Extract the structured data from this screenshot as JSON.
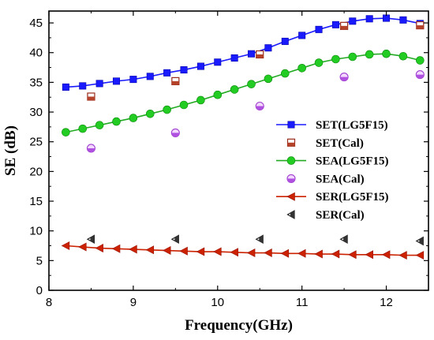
{
  "chart_data": {
    "type": "line",
    "xlabel": "Frequency(GHz)",
    "ylabel": "SE (dB)",
    "xlim": [
      8,
      12.5
    ],
    "ylim": [
      0,
      47
    ],
    "xticks": [
      8,
      9,
      10,
      11,
      12
    ],
    "yticks": [
      0,
      5,
      10,
      15,
      20,
      25,
      30,
      35,
      40,
      45
    ],
    "legend_position": "right",
    "series": [
      {
        "name": "SET(LG5F15)",
        "color": "#1a1aff",
        "marker": "square",
        "x": [
          8.2,
          8.4,
          8.6,
          8.8,
          9.0,
          9.2,
          9.4,
          9.6,
          9.8,
          10.0,
          10.2,
          10.4,
          10.6,
          10.8,
          11.0,
          11.2,
          11.4,
          11.6,
          11.8,
          12.0,
          12.2,
          12.4
        ],
        "y": [
          34.2,
          34.4,
          34.8,
          35.2,
          35.5,
          36.0,
          36.6,
          37.1,
          37.7,
          38.4,
          39.1,
          39.8,
          40.8,
          41.9,
          42.9,
          43.9,
          44.7,
          45.3,
          45.7,
          45.8,
          45.5,
          44.9
        ]
      },
      {
        "name": "SET(Cal)",
        "color": "#c0504d",
        "marker": "half-square",
        "x": [
          8.5,
          9.5,
          10.5,
          11.5,
          12.4
        ],
        "y": [
          32.6,
          35.2,
          39.7,
          44.5,
          44.6
        ]
      },
      {
        "name": "SEA(LG5F15)",
        "color": "#22cc22",
        "marker": "circle",
        "x": [
          8.2,
          8.4,
          8.6,
          8.8,
          9.0,
          9.2,
          9.4,
          9.6,
          9.8,
          10.0,
          10.2,
          10.4,
          10.6,
          10.8,
          11.0,
          11.2,
          11.4,
          11.6,
          11.8,
          12.0,
          12.2,
          12.4
        ],
        "y": [
          26.6,
          27.2,
          27.8,
          28.4,
          29.0,
          29.7,
          30.4,
          31.2,
          32.0,
          32.9,
          33.8,
          34.7,
          35.6,
          36.5,
          37.4,
          38.3,
          38.9,
          39.3,
          39.7,
          39.8,
          39.4,
          38.7
        ]
      },
      {
        "name": "SEA(Cal)",
        "color": "#b050d8",
        "marker": "half-circle",
        "x": [
          8.5,
          9.5,
          10.5,
          11.5,
          12.4
        ],
        "y": [
          23.9,
          26.5,
          31.0,
          35.9,
          36.3
        ]
      },
      {
        "name": "SER(LG5F15)",
        "color": "#cc2200",
        "marker": "triangle-left",
        "x": [
          8.2,
          8.4,
          8.6,
          8.8,
          9.0,
          9.2,
          9.4,
          9.6,
          9.8,
          10.0,
          10.2,
          10.4,
          10.6,
          10.8,
          11.0,
          11.2,
          11.4,
          11.6,
          11.8,
          12.0,
          12.2,
          12.4
        ],
        "y": [
          7.5,
          7.3,
          7.1,
          7.0,
          6.9,
          6.8,
          6.7,
          6.6,
          6.5,
          6.5,
          6.4,
          6.3,
          6.3,
          6.2,
          6.2,
          6.1,
          6.1,
          6.0,
          6.0,
          6.0,
          5.9,
          5.9
        ]
      },
      {
        "name": "SER(Cal)",
        "color": "#333333",
        "marker": "half-triangle-left",
        "x": [
          8.5,
          9.5,
          10.5,
          11.5,
          12.4
        ],
        "y": [
          8.6,
          8.6,
          8.6,
          8.6,
          8.3
        ]
      }
    ]
  }
}
